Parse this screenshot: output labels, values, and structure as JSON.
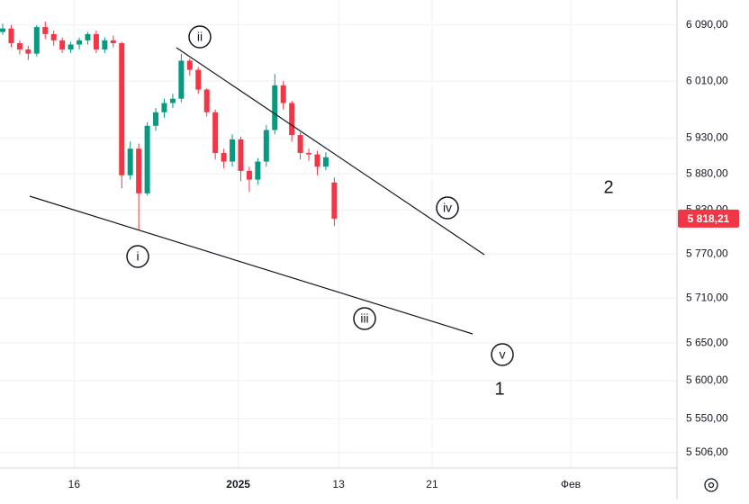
{
  "chart_data": {
    "type": "candlestick",
    "log_scale": true,
    "grid": true,
    "up_color": "#089981",
    "down_color": "#f23645",
    "x": [
      0,
      1,
      2,
      3,
      4,
      5,
      6,
      7,
      8,
      9,
      10,
      11,
      12,
      13,
      14,
      15,
      16,
      17,
      18,
      19,
      20,
      21,
      22,
      23,
      24,
      25,
      26,
      27,
      28,
      29,
      30,
      31,
      32,
      33,
      34,
      35,
      36,
      37,
      38,
      39
    ],
    "open": [
      6080,
      6085,
      6064,
      6055,
      6049,
      6087,
      6077,
      6068,
      6055,
      6062,
      6068,
      6077,
      6055,
      6068,
      6064,
      5878,
      5915,
      5853,
      5947,
      5966,
      5979,
      5985,
      6039,
      6026,
      5998,
      5966,
      5909,
      5897,
      5928,
      5884,
      5872,
      5897,
      5941,
      6004,
      5979,
      5934,
      5909,
      5907,
      5890,
      5868
    ],
    "high": [
      6092,
      6090,
      6068,
      6060,
      6090,
      6095,
      6082,
      6072,
      6066,
      6072,
      6080,
      6082,
      6072,
      6075,
      6066,
      5925,
      5922,
      5952,
      5972,
      5985,
      5992,
      6049,
      6042,
      6030,
      6000,
      5970,
      5915,
      5935,
      5932,
      5890,
      5902,
      5948,
      6020,
      6010,
      5982,
      5938,
      5915,
      5912,
      5910,
      5875
    ],
    "low": [
      6076,
      6058,
      6048,
      6040,
      6045,
      6070,
      6060,
      6050,
      6050,
      6055,
      6062,
      6050,
      6050,
      6058,
      5860,
      5872,
      5803,
      5850,
      5940,
      5958,
      5972,
      5980,
      6018,
      5992,
      5960,
      5900,
      5888,
      5890,
      5870,
      5855,
      5865,
      5890,
      5935,
      5970,
      5925,
      5900,
      5898,
      5878,
      5885,
      5808
    ],
    "close": [
      6085,
      6064,
      6055,
      6049,
      6087,
      6077,
      6068,
      6055,
      6062,
      6068,
      6077,
      6055,
      6068,
      6064,
      5878,
      5915,
      5853,
      5947,
      5966,
      5979,
      5985,
      6039,
      6026,
      5998,
      5966,
      5909,
      5897,
      5928,
      5884,
      5872,
      5897,
      5941,
      6004,
      5979,
      5934,
      5909,
      5907,
      5890,
      5903,
      5818.21
    ],
    "xlim": [
      -0.32,
      79.3
    ],
    "xticks": [
      {
        "value": 8.4,
        "label": "16"
      },
      {
        "value": 27.7,
        "label": "2025"
      },
      {
        "value": 39.5,
        "label": "13"
      },
      {
        "value": 50.5,
        "label": "21"
      },
      {
        "value": 66.8,
        "label": "Фев"
      }
    ],
    "ylim": [
      5486,
      6126
    ],
    "yticks": [
      {
        "value": 6090,
        "label": "6 090,00"
      },
      {
        "value": 6010,
        "label": "6 010,00"
      },
      {
        "value": 5930,
        "label": "5 930,00"
      },
      {
        "value": 5880,
        "label": "5 880,00"
      },
      {
        "value": 5830,
        "label": "5 830,00"
      },
      {
        "value": 5770,
        "label": "5 770,00"
      },
      {
        "value": 5710,
        "label": "5 710,00"
      },
      {
        "value": 5650,
        "label": "5 650,00"
      },
      {
        "value": 5600,
        "label": "5 600,00"
      },
      {
        "value": 5550,
        "label": "5 550,00"
      },
      {
        "value": 5506,
        "label": "5 506,00"
      }
    ],
    "current_price": {
      "value": 5818.21,
      "label": "5 818,21"
    },
    "annotations": [
      "i",
      "ii",
      "iii",
      "iv",
      "v",
      "1",
      "2"
    ]
  }
}
